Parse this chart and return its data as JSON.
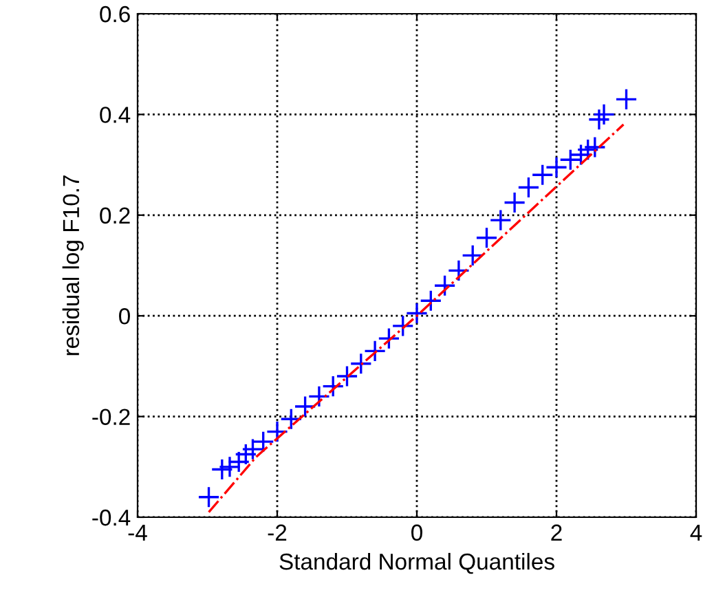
{
  "chart_data": {
    "type": "scatter",
    "xlabel": "Standard Normal Quantiles",
    "ylabel": "residual log F10.7",
    "xlim": [
      -4,
      4
    ],
    "xticks": [
      -4,
      -2,
      0,
      2,
      4
    ],
    "ylim": [
      -0.4,
      0.6
    ],
    "yticks": [
      -0.4,
      -0.2,
      0,
      0.2,
      0.4,
      0.6
    ],
    "grid": true,
    "series": [
      {
        "color": "#0000ff",
        "marker": "cross",
        "x": [
          -2.98,
          -2.79,
          -2.68,
          -2.55,
          -2.45,
          -2.35,
          -2.2,
          -2.0,
          -1.8,
          -1.6,
          -1.4,
          -1.2,
          -1.0,
          -0.8,
          -0.6,
          -0.4,
          -0.2,
          0,
          0.2,
          0.4,
          0.6,
          0.8,
          1.0,
          1.2,
          1.4,
          1.6,
          1.8,
          2.0,
          2.2,
          2.35,
          2.45,
          2.55,
          2.61,
          2.68,
          3.0
        ],
        "values": [
          -0.36,
          -0.305,
          -0.3,
          -0.29,
          -0.275,
          -0.265,
          -0.25,
          -0.23,
          -0.205,
          -0.18,
          -0.16,
          -0.14,
          -0.12,
          -0.095,
          -0.07,
          -0.045,
          -0.02,
          0.005,
          0.03,
          0.06,
          0.09,
          0.12,
          0.155,
          0.19,
          0.225,
          0.255,
          0.28,
          0.295,
          0.31,
          0.32,
          0.33,
          0.335,
          0.39,
          0.4,
          0.43
        ]
      },
      {
        "type": "line",
        "color": "#ff0000",
        "line_style": "dashed",
        "x": [
          -2.98,
          -2.3,
          0,
          2.96
        ],
        "values": [
          -0.39,
          -0.28,
          0,
          0.38
        ]
      }
    ]
  }
}
